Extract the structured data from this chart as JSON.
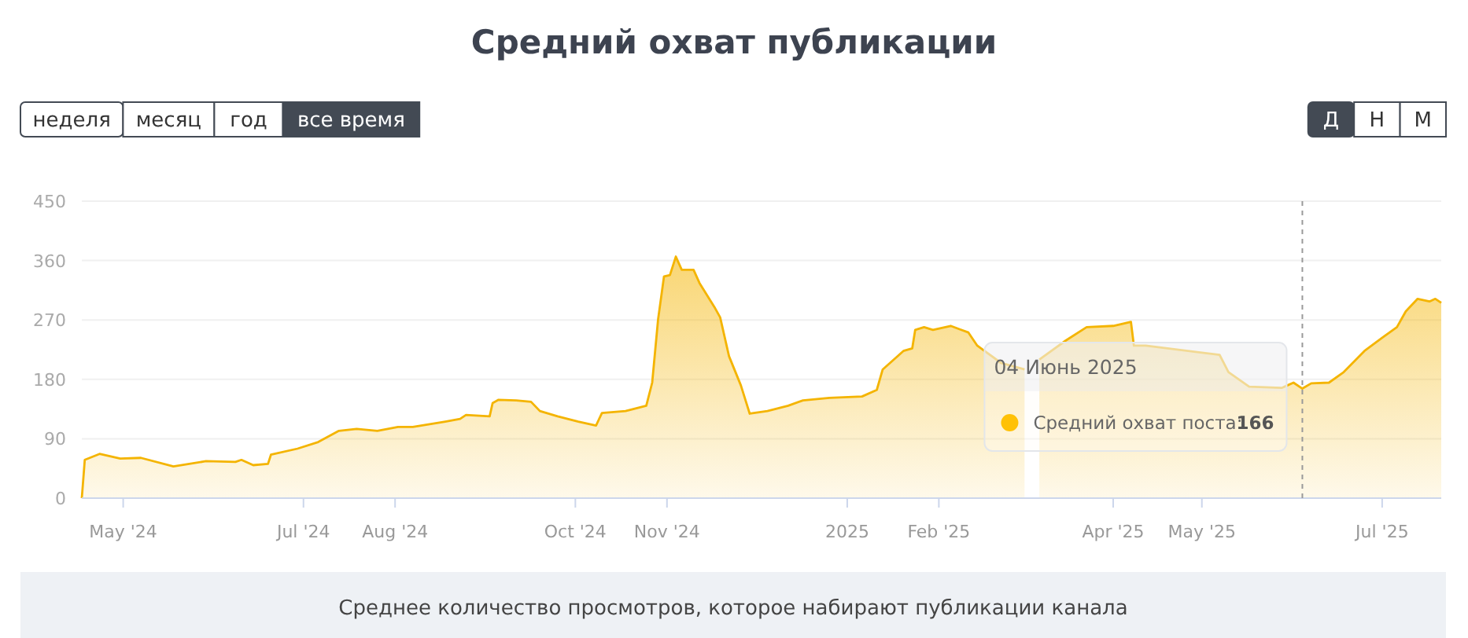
{
  "chart_data": {
    "type": "area",
    "title": "Средний охват публикации",
    "x": [
      "2024-04-17",
      "2024-04-18",
      "2024-04-23",
      "2024-04-30",
      "2024-05-07",
      "2024-05-18",
      "2024-05-29",
      "2024-06-08",
      "2024-06-10",
      "2024-06-14",
      "2024-06-19",
      "2024-06-20",
      "2024-06-29",
      "2024-07-06",
      "2024-07-13",
      "2024-07-19",
      "2024-07-26",
      "2024-08-02",
      "2024-08-07",
      "2024-08-18",
      "2024-08-23",
      "2024-08-25",
      "2024-09-02",
      "2024-09-03",
      "2024-09-05",
      "2024-09-11",
      "2024-09-16",
      "2024-09-19",
      "2024-09-25",
      "2024-10-02",
      "2024-10-08",
      "2024-10-10",
      "2024-10-18",
      "2024-10-25",
      "2024-10-27",
      "2024-10-29",
      "2024-10-31",
      "2024-11-02",
      "2024-11-04",
      "2024-11-06",
      "2024-11-10",
      "2024-11-12",
      "2024-11-17",
      "2024-11-19",
      "2024-11-22",
      "2024-11-26",
      "2024-11-29",
      "2024-12-05",
      "2024-12-12",
      "2024-12-17",
      "2024-12-26",
      "2025-01-06",
      "2025-01-11",
      "2025-01-13",
      "2025-01-20",
      "2025-01-23",
      "2025-01-24",
      "2025-01-27",
      "2025-01-30",
      "2025-02-05",
      "2025-02-08",
      "2025-02-11",
      "2025-02-14",
      "2025-02-22",
      "2025-03-02",
      "2025-03-04",
      "2025-03-07",
      "2025-03-16",
      "2025-03-23",
      "2025-04-01",
      "2025-04-07",
      "2025-04-08",
      "2025-04-12",
      "2025-05-07",
      "2025-05-10",
      "2025-05-17",
      "2025-05-28",
      "2025-05-30",
      "2025-06-01",
      "2025-06-04",
      "2025-06-07",
      "2025-06-13",
      "2025-06-18",
      "2025-06-25",
      "2025-07-01",
      "2025-07-06",
      "2025-07-09",
      "2025-07-13",
      "2025-07-17",
      "2025-07-19",
      "2025-07-21"
    ],
    "series": [
      {
        "color": "#f4b400",
        "values": [
          0,
          58,
          67,
          60,
          61,
          48,
          56,
          55,
          58,
          50,
          52,
          66,
          75,
          85,
          102,
          105,
          102,
          108,
          108,
          116,
          120,
          126,
          124,
          144,
          149,
          148,
          146,
          132,
          124,
          116,
          110,
          129,
          132,
          140,
          175,
          271,
          336,
          338,
          366,
          346,
          346,
          326,
          290,
          274,
          215,
          171,
          128,
          132,
          140,
          148,
          152,
          154,
          164,
          195,
          223,
          227,
          255,
          259,
          255,
          261,
          256,
          251,
          231,
          205,
          195,
          null,
          210,
          239,
          259,
          261,
          267,
          231,
          231,
          217,
          191,
          169,
          167,
          171,
          175,
          166,
          174,
          175,
          191,
          223,
          243,
          259,
          283,
          302,
          298,
          302,
          296
        ]
      }
    ],
    "xlim": [
      "2024-04-17",
      "2025-07-21"
    ],
    "xticks": [
      {
        "value": "2024-05-01",
        "label": "May '24"
      },
      {
        "value": "2024-07-01",
        "label": "Jul '24"
      },
      {
        "value": "2024-08-01",
        "label": "Aug '24"
      },
      {
        "value": "2024-10-01",
        "label": "Oct '24"
      },
      {
        "value": "2024-11-01",
        "label": "Nov '24"
      },
      {
        "value": "2025-01-01",
        "label": "2025"
      },
      {
        "value": "2025-02-01",
        "label": "Feb '25"
      },
      {
        "value": "2025-04-01",
        "label": "Apr '25"
      },
      {
        "value": "2025-05-01",
        "label": "May '25"
      },
      {
        "value": "2025-07-01",
        "label": "Jul '25"
      }
    ],
    "ylim": [
      0,
      450
    ],
    "yticks": [
      0,
      90,
      180,
      270,
      360,
      450
    ],
    "grid": "y",
    "ref_lines": [
      {
        "axis": "x",
        "value": "2025-06-04",
        "color": "#999999",
        "line_style": "dashed"
      }
    ],
    "annotations": [
      "04 Июнь 2025",
      "Средний охват поста:",
      "166",
      "неделя",
      "месяц",
      "год",
      "все время",
      "Д",
      "Н",
      "М",
      "Среднее количество просмотров, которое набирают публикации канала"
    ]
  }
}
